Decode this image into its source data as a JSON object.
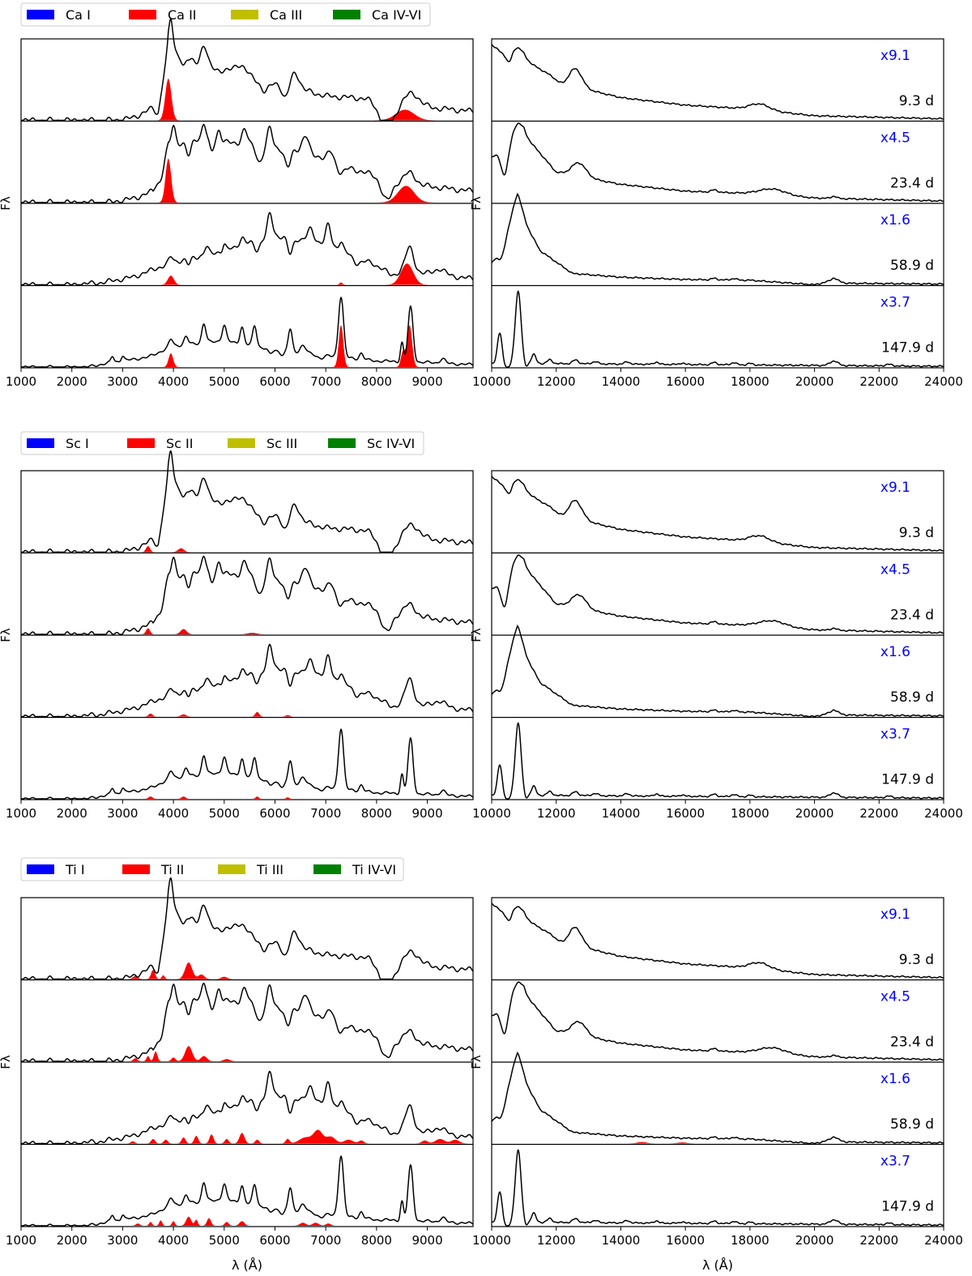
{
  "chart_data": {
    "type": "line",
    "title": "",
    "xlabel": "λ (Å)",
    "ylabel": "Fλ",
    "left_xlim": [
      1000,
      9900
    ],
    "right_xlim": [
      10000,
      24000
    ],
    "left_xticks": [
      "1000",
      "2000",
      "3000",
      "4000",
      "5000",
      "6000",
      "7000",
      "8000",
      "9000"
    ],
    "right_xticks": [
      "10000",
      "12000",
      "14000",
      "16000",
      "18000",
      "20000",
      "22000",
      "24000"
    ],
    "epochs": [
      {
        "epoch": "9.3 d",
        "scale": "x9.1"
      },
      {
        "epoch": "23.4 d",
        "scale": "x4.5"
      },
      {
        "epoch": "58.9 d",
        "scale": "x1.6"
      },
      {
        "epoch": "147.9 d",
        "scale": "x3.7"
      }
    ],
    "legend_colors": [
      "#0000ff",
      "#ff0000",
      "#bfbf00",
      "#008000"
    ],
    "annot_color": "#0000ff",
    "groups": [
      {
        "element": "Ca",
        "legend": [
          "Ca I",
          "Ca II",
          "Ca III",
          "Ca IV-VI"
        ],
        "contributions": [
          [
            {
              "c": 3900,
              "w": 60,
              "h": 0.55
            },
            {
              "c": 8560,
              "w": 180,
              "h": 0.14
            }
          ],
          [
            {
              "c": 3900,
              "w": 55,
              "h": 0.58
            },
            {
              "c": 8580,
              "w": 160,
              "h": 0.22
            }
          ],
          [
            {
              "c": 3950,
              "w": 60,
              "h": 0.12
            },
            {
              "c": 7300,
              "w": 30,
              "h": 0.03
            },
            {
              "c": 8600,
              "w": 120,
              "h": 0.28
            }
          ],
          [
            {
              "c": 3950,
              "w": 45,
              "h": 0.18
            },
            {
              "c": 7300,
              "w": 45,
              "h": 0.55
            },
            {
              "c": 8520,
              "w": 40,
              "h": 0.2
            },
            {
              "c": 8650,
              "w": 50,
              "h": 0.55
            }
          ]
        ],
        "ir_contributions": [
          [],
          [],
          [],
          []
        ]
      },
      {
        "element": "Sc",
        "legend": [
          "Sc I",
          "Sc II",
          "Sc III",
          "Sc IV-VI"
        ],
        "contributions": [
          [
            {
              "c": 3500,
              "w": 40,
              "h": 0.08
            },
            {
              "c": 4150,
              "w": 60,
              "h": 0.05
            }
          ],
          [
            {
              "c": 3500,
              "w": 40,
              "h": 0.08
            },
            {
              "c": 4200,
              "w": 60,
              "h": 0.07
            },
            {
              "c": 5550,
              "w": 90,
              "h": 0.02
            }
          ],
          [
            {
              "c": 3550,
              "w": 40,
              "h": 0.04
            },
            {
              "c": 4200,
              "w": 50,
              "h": 0.03
            },
            {
              "c": 5650,
              "w": 40,
              "h": 0.06
            },
            {
              "c": 6250,
              "w": 40,
              "h": 0.02
            }
          ],
          [
            {
              "c": 3550,
              "w": 40,
              "h": 0.03
            },
            {
              "c": 4200,
              "w": 40,
              "h": 0.03
            },
            {
              "c": 5650,
              "w": 30,
              "h": 0.03
            },
            {
              "c": 6250,
              "w": 30,
              "h": 0.02
            }
          ]
        ],
        "ir_contributions": [
          [],
          [],
          [],
          []
        ]
      },
      {
        "element": "Ti",
        "legend": [
          "Ti I",
          "Ti II",
          "Ti III",
          "Ti IV-VI"
        ],
        "contributions": [
          [
            {
              "c": 3250,
              "w": 50,
              "h": 0.04
            },
            {
              "c": 3600,
              "w": 40,
              "h": 0.12
            },
            {
              "c": 3800,
              "w": 30,
              "h": 0.05
            },
            {
              "c": 4300,
              "w": 70,
              "h": 0.22
            },
            {
              "c": 4550,
              "w": 60,
              "h": 0.06
            },
            {
              "c": 5000,
              "w": 60,
              "h": 0.03
            }
          ],
          [
            {
              "c": 3250,
              "w": 40,
              "h": 0.04
            },
            {
              "c": 3500,
              "w": 30,
              "h": 0.07
            },
            {
              "c": 3650,
              "w": 35,
              "h": 0.13
            },
            {
              "c": 4000,
              "w": 40,
              "h": 0.05
            },
            {
              "c": 4300,
              "w": 70,
              "h": 0.2
            },
            {
              "c": 4600,
              "w": 60,
              "h": 0.07
            },
            {
              "c": 5050,
              "w": 60,
              "h": 0.03
            }
          ],
          [
            {
              "c": 3200,
              "w": 40,
              "h": 0.03
            },
            {
              "c": 3600,
              "w": 40,
              "h": 0.06
            },
            {
              "c": 3850,
              "w": 40,
              "h": 0.05
            },
            {
              "c": 4200,
              "w": 40,
              "h": 0.08
            },
            {
              "c": 4450,
              "w": 40,
              "h": 0.1
            },
            {
              "c": 4750,
              "w": 40,
              "h": 0.12
            },
            {
              "c": 5050,
              "w": 40,
              "h": 0.06
            },
            {
              "c": 5350,
              "w": 50,
              "h": 0.14
            },
            {
              "c": 5650,
              "w": 40,
              "h": 0.05
            },
            {
              "c": 6250,
              "w": 40,
              "h": 0.06
            },
            {
              "c": 6600,
              "w": 120,
              "h": 0.08
            },
            {
              "c": 6850,
              "w": 90,
              "h": 0.17
            },
            {
              "c": 7100,
              "w": 90,
              "h": 0.09
            },
            {
              "c": 7450,
              "w": 90,
              "h": 0.05
            },
            {
              "c": 7700,
              "w": 50,
              "h": 0.04
            },
            {
              "c": 8950,
              "w": 60,
              "h": 0.04
            },
            {
              "c": 9250,
              "w": 90,
              "h": 0.06
            },
            {
              "c": 9550,
              "w": 80,
              "h": 0.05
            }
          ],
          [
            {
              "c": 3300,
              "w": 40,
              "h": 0.03
            },
            {
              "c": 3550,
              "w": 30,
              "h": 0.05
            },
            {
              "c": 3750,
              "w": 30,
              "h": 0.07
            },
            {
              "c": 4000,
              "w": 30,
              "h": 0.06
            },
            {
              "c": 4300,
              "w": 50,
              "h": 0.12
            },
            {
              "c": 4450,
              "w": 30,
              "h": 0.08
            },
            {
              "c": 4700,
              "w": 40,
              "h": 0.1
            },
            {
              "c": 5050,
              "w": 40,
              "h": 0.05
            },
            {
              "c": 5350,
              "w": 50,
              "h": 0.06
            },
            {
              "c": 6550,
              "w": 60,
              "h": 0.04
            },
            {
              "c": 6800,
              "w": 60,
              "h": 0.04
            },
            {
              "c": 7050,
              "w": 50,
              "h": 0.03
            }
          ]
        ],
        "ir_contributions": [
          [],
          [],
          [
            {
              "c": 14650,
              "w": 150,
              "h": 0.02
            },
            {
              "c": 15900,
              "w": 150,
              "h": 0.015
            }
          ],
          []
        ]
      }
    ]
  }
}
